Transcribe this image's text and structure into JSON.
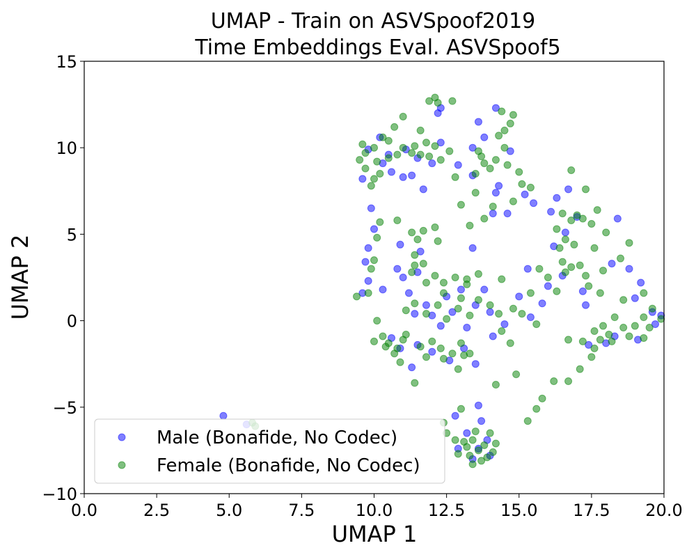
{
  "chart_data": {
    "type": "scatter",
    "title": [
      "UMAP - Train on ASVSpoof2019",
      "Time Embeddings Eval. ASVSpoof5"
    ],
    "xlabel": "UMAP 1",
    "ylabel": "UMAP 2",
    "xlim": [
      0.0,
      20.0
    ],
    "ylim": [
      -10,
      15
    ],
    "x_ticks": [
      "0.0",
      "2.5",
      "5.0",
      "7.5",
      "10.0",
      "12.5",
      "15.0",
      "17.5",
      "20.0"
    ],
    "y_ticks": [
      "−10",
      "−5",
      "0",
      "5",
      "10",
      "15"
    ],
    "grid": false,
    "legend_position": "lower-left",
    "series": [
      {
        "name": "Male (Bonafide, No Codec)",
        "color": "#0000ff",
        "alpha": 0.5,
        "points": [
          [
            4.8,
            -5.5
          ],
          [
            5.6,
            -6.0
          ],
          [
            12.8,
            -5.5
          ],
          [
            13.6,
            -4.9
          ],
          [
            13.7,
            -5.8
          ],
          [
            11.0,
            8.3
          ],
          [
            10.6,
            8.6
          ],
          [
            11.7,
            7.6
          ],
          [
            12.2,
            12.0
          ],
          [
            12.3,
            12.3
          ],
          [
            11.3,
            8.4
          ],
          [
            10.2,
            10.6
          ],
          [
            9.9,
            6.5
          ],
          [
            10.0,
            5.3
          ],
          [
            9.8,
            4.2
          ],
          [
            9.7,
            3.4
          ],
          [
            9.8,
            2.3
          ],
          [
            9.6,
            1.6
          ],
          [
            10.3,
            1.8
          ],
          [
            10.8,
            3.0
          ],
          [
            11.0,
            2.5
          ],
          [
            11.5,
            2.8
          ],
          [
            11.2,
            1.6
          ],
          [
            11.6,
            4.0
          ],
          [
            10.9,
            4.4
          ],
          [
            13.4,
            4.2
          ],
          [
            14.2,
            12.3
          ],
          [
            13.6,
            11.5
          ],
          [
            13.8,
            10.6
          ],
          [
            14.7,
            9.8
          ],
          [
            13.4,
            8.4
          ],
          [
            14.2,
            7.4
          ],
          [
            14.1,
            6.2
          ],
          [
            14.6,
            6.2
          ],
          [
            14.3,
            7.8
          ],
          [
            13.4,
            10.0
          ],
          [
            12.9,
            9.0
          ],
          [
            15.2,
            7.3
          ],
          [
            15.5,
            6.8
          ],
          [
            16.3,
            7.1
          ],
          [
            16.7,
            7.6
          ],
          [
            16.1,
            6.3
          ],
          [
            16.6,
            5.1
          ],
          [
            17.0,
            6.0
          ],
          [
            16.2,
            4.3
          ],
          [
            16.5,
            2.6
          ],
          [
            16.0,
            2.0
          ],
          [
            15.8,
            1.0
          ],
          [
            15.4,
            0.2
          ],
          [
            15.0,
            1.4
          ],
          [
            15.3,
            3.0
          ],
          [
            17.2,
            1.7
          ],
          [
            17.3,
            0.9
          ],
          [
            18.4,
            5.9
          ],
          [
            18.2,
            3.3
          ],
          [
            18.8,
            3.0
          ],
          [
            19.2,
            2.2
          ],
          [
            19.0,
            1.3
          ],
          [
            19.6,
            0.5
          ],
          [
            18.3,
            -0.9
          ],
          [
            18.0,
            -1.3
          ],
          [
            17.4,
            -1.4
          ],
          [
            19.1,
            -1.1
          ],
          [
            19.7,
            -0.2
          ],
          [
            19.9,
            0.3
          ],
          [
            12.0,
            0.3
          ],
          [
            12.3,
            -0.3
          ],
          [
            12.7,
            0.5
          ],
          [
            13.2,
            -0.4
          ],
          [
            13.5,
            0.9
          ],
          [
            14.0,
            0.5
          ],
          [
            14.5,
            -0.2
          ],
          [
            11.5,
            -1.4
          ],
          [
            12.0,
            -1.8
          ],
          [
            12.6,
            -2.3
          ],
          [
            13.1,
            -1.6
          ],
          [
            13.5,
            -2.5
          ],
          [
            10.9,
            -1.6
          ],
          [
            10.6,
            -1.0
          ],
          [
            11.3,
            -2.7
          ],
          [
            12.5,
            1.4
          ],
          [
            13.0,
            1.8
          ],
          [
            13.8,
            1.8
          ],
          [
            14.1,
            -0.9
          ],
          [
            11.8,
            0.9
          ],
          [
            11.4,
            0.4
          ],
          [
            13.2,
            -6.5
          ],
          [
            13.6,
            -7.4
          ],
          [
            13.9,
            -6.9
          ],
          [
            13.4,
            -8.0
          ],
          [
            12.9,
            -7.4
          ],
          [
            14.0,
            -7.8
          ],
          [
            10.3,
            9.1
          ],
          [
            9.8,
            9.9
          ],
          [
            10.5,
            9.6
          ],
          [
            11.1,
            9.9
          ],
          [
            11.5,
            9.4
          ],
          [
            12.0,
            9.1
          ],
          [
            12.3,
            10.3
          ],
          [
            9.6,
            8.2
          ]
        ]
      },
      {
        "name": "Female (Bonafide, No Codec)",
        "color": "#008000",
        "alpha": 0.5,
        "points": [
          [
            5.8,
            -5.9
          ],
          [
            5.9,
            -6.1
          ],
          [
            12.4,
            -5.9
          ],
          [
            12.5,
            -6.5
          ],
          [
            13.0,
            -5.1
          ],
          [
            13.4,
            -6.9
          ],
          [
            13.6,
            -7.5
          ],
          [
            13.3,
            -7.8
          ],
          [
            13.8,
            -7.2
          ],
          [
            13.1,
            -7.0
          ],
          [
            13.7,
            -8.1
          ],
          [
            14.1,
            -7.6
          ],
          [
            12.9,
            -7.7
          ],
          [
            13.5,
            -6.4
          ],
          [
            14.2,
            -7.1
          ],
          [
            13.2,
            -7.3
          ],
          [
            13.9,
            -7.9
          ],
          [
            13.4,
            -8.3
          ],
          [
            12.8,
            -6.9
          ],
          [
            14.0,
            -6.5
          ],
          [
            15.8,
            -4.5
          ],
          [
            15.6,
            -5.1
          ],
          [
            15.3,
            -5.8
          ],
          [
            16.2,
            -3.5
          ],
          [
            16.7,
            -3.5
          ],
          [
            17.1,
            -2.8
          ],
          [
            17.5,
            -2.1
          ],
          [
            17.6,
            -1.6
          ],
          [
            14.2,
            -3.7
          ],
          [
            14.9,
            -3.1
          ],
          [
            11.4,
            -3.6
          ],
          [
            9.8,
            1.6
          ],
          [
            9.4,
            1.4
          ],
          [
            10.1,
            0.0
          ],
          [
            10.3,
            -0.9
          ],
          [
            10.0,
            -1.2
          ],
          [
            10.4,
            -1.5
          ],
          [
            10.7,
            -1.9
          ],
          [
            10.9,
            -2.4
          ],
          [
            11.0,
            -1.1
          ],
          [
            10.5,
            -1.3
          ],
          [
            10.8,
            -1.6
          ],
          [
            11.1,
            -0.8
          ],
          [
            10.0,
            3.5
          ],
          [
            9.9,
            3.0
          ],
          [
            10.1,
            4.8
          ],
          [
            10.2,
            5.7
          ],
          [
            10.8,
            5.8
          ],
          [
            11.3,
            5.1
          ],
          [
            11.5,
            4.7
          ],
          [
            11.7,
            5.2
          ],
          [
            12.1,
            5.4
          ],
          [
            12.2,
            4.6
          ],
          [
            11.4,
            3.8
          ],
          [
            11.4,
            3.2
          ],
          [
            11.7,
            3.3
          ],
          [
            11.3,
            2.8
          ],
          [
            12.1,
            2.6
          ],
          [
            12.4,
            2.2
          ],
          [
            11.8,
            2.2
          ],
          [
            12.8,
            2.5
          ],
          [
            13.2,
            2.4
          ],
          [
            13.6,
            2.7
          ],
          [
            13.2,
            2.1
          ],
          [
            10.0,
            8.2
          ],
          [
            9.7,
            8.8
          ],
          [
            9.5,
            9.3
          ],
          [
            9.7,
            9.7
          ],
          [
            10.0,
            10.0
          ],
          [
            10.3,
            10.6
          ],
          [
            10.1,
            9.2
          ],
          [
            10.5,
            9.4
          ],
          [
            10.8,
            9.6
          ],
          [
            10.2,
            8.5
          ],
          [
            9.6,
            10.2
          ],
          [
            9.9,
            7.8
          ],
          [
            10.5,
            10.4
          ],
          [
            11.0,
            10.0
          ],
          [
            11.4,
            10.1
          ],
          [
            11.8,
            10.3
          ],
          [
            12.1,
            10.1
          ],
          [
            11.3,
            9.7
          ],
          [
            11.6,
            9.6
          ],
          [
            11.9,
            9.5
          ],
          [
            12.3,
            9.3
          ],
          [
            10.7,
            11.2
          ],
          [
            11.0,
            11.8
          ],
          [
            11.6,
            11.0
          ],
          [
            12.6,
            9.8
          ],
          [
            12.1,
            12.9
          ],
          [
            12.2,
            12.6
          ],
          [
            11.9,
            12.7
          ],
          [
            12.7,
            12.7
          ],
          [
            12.8,
            8.3
          ],
          [
            13.5,
            8.5
          ],
          [
            13.8,
            9.1
          ],
          [
            13.7,
            9.5
          ],
          [
            14.2,
            9.3
          ],
          [
            14.5,
            10.0
          ],
          [
            14.5,
            11.0
          ],
          [
            14.3,
            10.7
          ],
          [
            14.7,
            11.4
          ],
          [
            14.4,
            12.1
          ],
          [
            14.8,
            11.9
          ],
          [
            13.6,
            9.8
          ],
          [
            14.0,
            8.8
          ],
          [
            14.6,
            9.0
          ],
          [
            15.0,
            8.6
          ],
          [
            13.0,
            6.7
          ],
          [
            13.5,
            7.4
          ],
          [
            13.3,
            5.5
          ],
          [
            13.8,
            5.9
          ],
          [
            14.1,
            6.6
          ],
          [
            14.8,
            6.9
          ],
          [
            15.4,
            7.7
          ],
          [
            15.1,
            7.9
          ],
          [
            16.8,
            8.7
          ],
          [
            17.3,
            7.6
          ],
          [
            17.7,
            6.4
          ],
          [
            17.0,
            6.1
          ],
          [
            16.8,
            5.8
          ],
          [
            16.5,
            6.2
          ],
          [
            17.2,
            5.9
          ],
          [
            17.5,
            5.6
          ],
          [
            16.3,
            5.3
          ],
          [
            16.6,
            4.7
          ],
          [
            16.4,
            4.2
          ],
          [
            16.9,
            4.4
          ],
          [
            17.6,
            4.2
          ],
          [
            18.0,
            5.1
          ],
          [
            16.5,
            3.4
          ],
          [
            16.8,
            3.1
          ],
          [
            17.1,
            3.2
          ],
          [
            16.6,
            2.8
          ],
          [
            17.3,
            2.6
          ],
          [
            16.0,
            2.5
          ],
          [
            15.7,
            3.0
          ],
          [
            17.4,
            2.0
          ],
          [
            17.9,
            2.9
          ],
          [
            18.5,
            3.6
          ],
          [
            18.8,
            4.5
          ],
          [
            17.8,
            1.6
          ],
          [
            18.6,
            1.2
          ],
          [
            19.3,
            1.6
          ],
          [
            18.3,
            0.2
          ],
          [
            17.9,
            -0.3
          ],
          [
            17.6,
            -0.6
          ],
          [
            18.1,
            -0.8
          ],
          [
            18.6,
            -0.4
          ],
          [
            19.0,
            -0.3
          ],
          [
            19.3,
            0.2
          ],
          [
            19.6,
            0.7
          ],
          [
            19.9,
            0.1
          ],
          [
            19.5,
            -0.4
          ],
          [
            18.8,
            -0.9
          ],
          [
            19.3,
            -1.0
          ],
          [
            18.2,
            -1.2
          ],
          [
            17.8,
            -1.1
          ],
          [
            16.7,
            -1.1
          ],
          [
            17.2,
            -1.2
          ],
          [
            11.8,
            0.4
          ],
          [
            12.2,
            0.9
          ],
          [
            12.5,
            0.1
          ],
          [
            12.9,
            0.7
          ],
          [
            13.3,
            0.3
          ],
          [
            13.6,
            1.2
          ],
          [
            14.0,
            0.9
          ],
          [
            14.3,
            0.4
          ],
          [
            12.4,
            1.6
          ],
          [
            13.0,
            1.3
          ],
          [
            11.4,
            1.0
          ],
          [
            11.1,
            0.6
          ],
          [
            14.8,
            0.7
          ],
          [
            14.4,
            -0.6
          ],
          [
            14.7,
            -1.3
          ],
          [
            12.0,
            -1.2
          ],
          [
            12.3,
            -1.6
          ],
          [
            12.7,
            -1.9
          ],
          [
            13.0,
            -1.3
          ],
          [
            12.4,
            -2.2
          ],
          [
            11.8,
            -2.1
          ],
          [
            13.3,
            -1.9
          ],
          [
            12.9,
            -2.8
          ],
          [
            13.1,
            -2.0
          ],
          [
            11.6,
            -1.5
          ],
          [
            14.4,
            2.4
          ],
          [
            15.4,
            1.6
          ],
          [
            15.6,
            -0.2
          ],
          [
            15.1,
            0.4
          ],
          [
            16.3,
            1.7
          ]
        ]
      }
    ]
  }
}
